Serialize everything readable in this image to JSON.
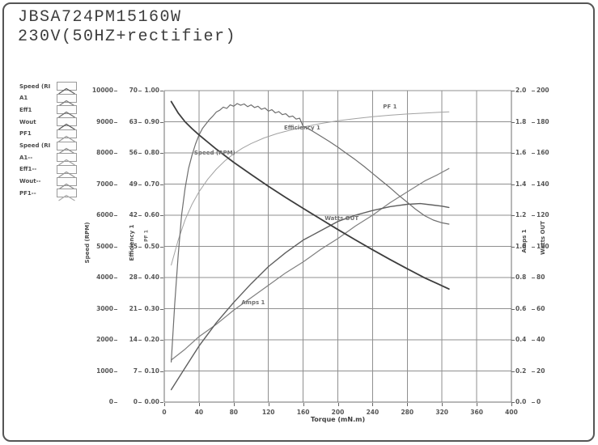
{
  "header": {
    "model": "JBSA724PM15160W",
    "condition": "230V(50HZ+rectifier)"
  },
  "legend": {
    "items": [
      {
        "label": "Speed (RI",
        "swatch_color": "#5f5f5f"
      },
      {
        "label": "A1",
        "swatch_color": "#7d7d7d"
      },
      {
        "label": "Eff1",
        "swatch_color": "#6d6d6d"
      },
      {
        "label": "Wout",
        "swatch_color": "#585858"
      },
      {
        "label": "PF1",
        "swatch_color": "#9c9c9c"
      },
      {
        "label": "Speed (RI",
        "swatch_color": "#8d8d8d"
      },
      {
        "label": "A1--",
        "swatch_color": "#a2a2a2"
      },
      {
        "label": "Eff1--",
        "swatch_color": "#979797"
      },
      {
        "label": "Wout--",
        "swatch_color": "#8d8d8d"
      },
      {
        "label": "PF1--",
        "swatch_color": "#adadad"
      }
    ]
  },
  "chart_data": {
    "type": "line",
    "xlabel": "Torque (mN.m)",
    "x_range": [
      0,
      400
    ],
    "x_ticks": [
      "0",
      "40",
      "80",
      "120",
      "160",
      "200",
      "240",
      "280",
      "320",
      "360",
      "400"
    ],
    "grid": true,
    "grid_color": "#8f8f8f",
    "axes_left": [
      {
        "id": "speed",
        "label": "Speed (RPM)",
        "max": 10000,
        "ticks": [
          "10000",
          "9000",
          "8000",
          "7000",
          "6000",
          "5000",
          "4000",
          "3000",
          "2000",
          "1000",
          "0"
        ]
      },
      {
        "id": "efficiency",
        "label": "Efficiency 1",
        "max": 70,
        "ticks": [
          "70",
          "63",
          "56",
          "49",
          "42",
          "35",
          "28",
          "21",
          "14",
          "7",
          "0"
        ]
      },
      {
        "id": "pf",
        "label": "PF 1",
        "max": 1,
        "ticks": [
          "1.00",
          "0.90",
          "0.80",
          "0.70",
          "0.60",
          "0.50",
          "0.40",
          "0.30",
          "0.20",
          "0.10",
          "0.00"
        ]
      }
    ],
    "axes_right": [
      {
        "id": "amps",
        "label": "Amps 1",
        "max": 2,
        "ticks": [
          "2.0",
          "1.8",
          "1.6",
          "1.4",
          "1.2",
          "1.0",
          "0.8",
          "0.6",
          "0.4",
          "0.2",
          "0.0"
        ]
      },
      {
        "id": "watts",
        "label": "Watts OUT",
        "max": 200,
        "ticks": [
          "200",
          "180",
          "160",
          "140",
          "120",
          "100",
          "80",
          "60",
          "40",
          "20",
          "0"
        ]
      }
    ],
    "series": [
      {
        "name": "PF 1",
        "axis": "pf",
        "color": "#a2a2a2",
        "width": 1,
        "points": [
          [
            8,
            0.44
          ],
          [
            16,
            0.52
          ],
          [
            24,
            0.585
          ],
          [
            32,
            0.635
          ],
          [
            40,
            0.675
          ],
          [
            50,
            0.715
          ],
          [
            60,
            0.748
          ],
          [
            70,
            0.775
          ],
          [
            80,
            0.797
          ],
          [
            90,
            0.815
          ],
          [
            100,
            0.83
          ],
          [
            115,
            0.848
          ],
          [
            130,
            0.862
          ],
          [
            145,
            0.873
          ],
          [
            160,
            0.883
          ],
          [
            180,
            0.894
          ],
          [
            200,
            0.903
          ],
          [
            220,
            0.91
          ],
          [
            240,
            0.916
          ],
          [
            260,
            0.921
          ],
          [
            280,
            0.925
          ],
          [
            300,
            0.928
          ],
          [
            315,
            0.93
          ],
          [
            328,
            0.932
          ]
        ]
      },
      {
        "name": "Amps 1",
        "axis": "amps",
        "color": "#7f7f7f",
        "width": 1.2,
        "points": [
          [
            8,
            0.27
          ],
          [
            24,
            0.34
          ],
          [
            40,
            0.42
          ],
          [
            60,
            0.5
          ],
          [
            80,
            0.59
          ],
          [
            100,
            0.67
          ],
          [
            120,
            0.75
          ],
          [
            140,
            0.83
          ],
          [
            160,
            0.9
          ],
          [
            180,
            0.98
          ],
          [
            200,
            1.05
          ],
          [
            220,
            1.13
          ],
          [
            240,
            1.2
          ],
          [
            260,
            1.28
          ],
          [
            280,
            1.35
          ],
          [
            300,
            1.42
          ],
          [
            315,
            1.46
          ],
          [
            328,
            1.5
          ]
        ]
      },
      {
        "name": "Watts OUT",
        "axis": "watts",
        "color": "#5e5e5e",
        "width": 1.4,
        "points": [
          [
            8,
            8
          ],
          [
            24,
            22
          ],
          [
            40,
            36
          ],
          [
            60,
            51
          ],
          [
            80,
            64
          ],
          [
            100,
            76
          ],
          [
            120,
            87
          ],
          [
            140,
            96
          ],
          [
            160,
            104
          ],
          [
            180,
            110
          ],
          [
            200,
            116
          ],
          [
            220,
            120
          ],
          [
            240,
            123
          ],
          [
            260,
            125.5
          ],
          [
            280,
            127
          ],
          [
            295,
            127.5
          ],
          [
            310,
            126.5
          ],
          [
            320,
            125.8
          ],
          [
            328,
            125
          ]
        ]
      },
      {
        "name": "Efficiency 1",
        "axis": "efficiency",
        "color": "#6e6e6e",
        "width": 1.2,
        "points": [
          [
            8,
            9
          ],
          [
            12,
            22
          ],
          [
            16,
            33
          ],
          [
            20,
            42
          ],
          [
            24,
            48
          ],
          [
            28,
            52.5
          ],
          [
            32,
            55.5
          ],
          [
            36,
            58
          ],
          [
            40,
            60
          ],
          [
            44,
            61.5
          ],
          [
            48,
            62.5
          ],
          [
            52,
            63.5
          ],
          [
            56,
            64.3
          ],
          [
            60,
            65.2
          ],
          [
            64,
            65.6
          ],
          [
            68,
            66.3
          ],
          [
            72,
            66.0
          ],
          [
            76,
            66.8
          ],
          [
            80,
            66.5
          ],
          [
            84,
            67.1
          ],
          [
            88,
            66.7
          ],
          [
            92,
            67.0
          ],
          [
            96,
            66.4
          ],
          [
            100,
            66.8
          ],
          [
            104,
            66.2
          ],
          [
            108,
            66.5
          ],
          [
            112,
            65.8
          ],
          [
            116,
            66.1
          ],
          [
            120,
            65.4
          ],
          [
            124,
            65.7
          ],
          [
            128,
            65.0
          ],
          [
            132,
            65.3
          ],
          [
            136,
            64.6
          ],
          [
            140,
            64.8
          ],
          [
            144,
            64.1
          ],
          [
            148,
            64.3
          ],
          [
            152,
            63.6
          ],
          [
            156,
            63.8
          ],
          [
            160,
            62.0
          ],
          [
            170,
            61.0
          ],
          [
            180,
            59.8
          ],
          [
            190,
            58.6
          ],
          [
            200,
            57.3
          ],
          [
            210,
            55.9
          ],
          [
            220,
            54.5
          ],
          [
            230,
            53.0
          ],
          [
            240,
            51.4
          ],
          [
            250,
            49.8
          ],
          [
            260,
            48.2
          ],
          [
            270,
            46.5
          ],
          [
            280,
            44.9
          ],
          [
            290,
            43.3
          ],
          [
            300,
            41.9
          ],
          [
            310,
            40.9
          ],
          [
            320,
            40.3
          ],
          [
            328,
            40.0
          ]
        ],
        "noisy": true
      },
      {
        "name": "Speed (RPM)",
        "axis": "speed",
        "color": "#3d3d3d",
        "width": 1.8,
        "points": [
          [
            8,
            9650
          ],
          [
            16,
            9280
          ],
          [
            24,
            9000
          ],
          [
            32,
            8780
          ],
          [
            40,
            8580
          ],
          [
            60,
            8120
          ],
          [
            80,
            7700
          ],
          [
            100,
            7310
          ],
          [
            120,
            6930
          ],
          [
            140,
            6570
          ],
          [
            160,
            6220
          ],
          [
            180,
            5880
          ],
          [
            200,
            5540
          ],
          [
            220,
            5210
          ],
          [
            240,
            4890
          ],
          [
            260,
            4580
          ],
          [
            280,
            4280
          ],
          [
            300,
            3990
          ],
          [
            315,
            3800
          ],
          [
            328,
            3630
          ]
        ]
      }
    ],
    "annotations": [
      {
        "text": "Speed (RPM)",
        "fx": 0.086,
        "fy": 0.19
      },
      {
        "text": "Efficiency 1",
        "fx": 0.345,
        "fy": 0.11
      },
      {
        "text": "PF 1",
        "fx": 0.63,
        "fy": 0.042
      },
      {
        "text": "Watts OUT",
        "fx": 0.462,
        "fy": 0.4
      },
      {
        "text": "Amps 1",
        "fx": 0.222,
        "fy": 0.67
      }
    ]
  }
}
